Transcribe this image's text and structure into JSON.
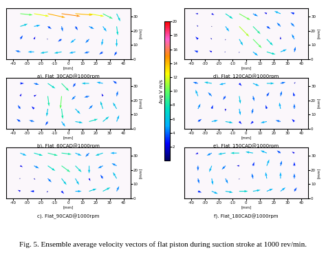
{
  "figure_caption": "Fig. 5. Ensemble average velocity vectors of flat piston during suction stroke at 1000 rev/min.",
  "colorbar": {
    "label": "Avg V m/s",
    "range": [
      0,
      20
    ],
    "ticks": [
      2,
      4,
      6,
      8,
      10,
      12,
      14,
      16,
      18,
      20
    ]
  },
  "chart_data": [
    {
      "type": "quiver",
      "title": "a). Flat_30CAD@1000rpm",
      "x_label": "[mm]",
      "y_label": "[mm]",
      "x": [
        -35,
        -25,
        -15,
        -5,
        5,
        15,
        25,
        35
      ],
      "y": [
        5,
        14,
        23,
        32
      ],
      "u": [
        [
          -4,
          -5,
          -6,
          -6,
          -5,
          -4,
          -3,
          -2
        ],
        [
          2,
          1,
          -1,
          -3,
          -4,
          -3,
          -1,
          0
        ],
        [
          6,
          5,
          3,
          1,
          2,
          4,
          3,
          1
        ],
        [
          10,
          12,
          14,
          15,
          14,
          12,
          8,
          3
        ]
      ],
      "v": [
        [
          1,
          0,
          -1,
          -1,
          -1,
          -1,
          -2,
          -3
        ],
        [
          3,
          2,
          0,
          -2,
          -3,
          -3,
          -5,
          -6
        ],
        [
          2,
          1,
          -2,
          -4,
          -3,
          -2,
          -4,
          -7
        ],
        [
          -1,
          -2,
          -3,
          -2,
          -1,
          -2,
          -4,
          -6
        ]
      ],
      "xlim": [
        -45,
        45
      ],
      "ylim": [
        0,
        36
      ],
      "xticks": [
        -40,
        -30,
        -20,
        -10,
        0,
        10,
        20,
        30,
        40
      ],
      "yticks": [
        0,
        10,
        20,
        30
      ]
    },
    {
      "type": "quiver",
      "title": "b). Flat_60CAD@1000rpm",
      "x_label": "[mm]",
      "y_label": "[mm]",
      "x": [
        -35,
        -25,
        -15,
        -5,
        5,
        15,
        25,
        35
      ],
      "y": [
        5,
        14,
        23,
        32
      ],
      "u": [
        [
          -3,
          -4,
          -2,
          3,
          6,
          7,
          5,
          2
        ],
        [
          -2,
          -2,
          -1,
          1,
          4,
          3,
          -2,
          -3
        ],
        [
          1,
          2,
          1,
          -1,
          -3,
          -4,
          -1,
          1
        ],
        [
          3,
          4,
          6,
          6,
          -2,
          -6,
          -5,
          -3
        ]
      ],
      "v": [
        [
          2,
          1,
          -3,
          -4,
          -1,
          2,
          4,
          5
        ],
        [
          3,
          2,
          -6,
          -8,
          -4,
          3,
          6,
          5
        ],
        [
          2,
          1,
          -8,
          -10,
          -3,
          -1,
          2,
          4
        ],
        [
          0,
          -1,
          -4,
          -6,
          -3,
          0,
          1,
          2
        ]
      ],
      "xlim": [
        -45,
        45
      ],
      "ylim": [
        0,
        36
      ],
      "xticks": [
        -40,
        -30,
        -20,
        -10,
        0,
        10,
        20,
        30,
        40
      ],
      "yticks": [
        0,
        10,
        20,
        30
      ]
    },
    {
      "type": "quiver",
      "title": "c). Flat_90CAD@1000rpm",
      "x_label": "[mm]",
      "y_label": "[mm]",
      "x": [
        -35,
        -25,
        -15,
        -5,
        5,
        15,
        25,
        35
      ],
      "y": [
        5,
        14,
        23,
        32
      ],
      "u": [
        [
          -2,
          -3,
          -1,
          2,
          5,
          6,
          6,
          2
        ],
        [
          -1,
          1,
          3,
          4,
          3,
          1,
          -2,
          -3
        ],
        [
          2,
          4,
          6,
          7,
          5,
          0,
          -4,
          -4
        ],
        [
          5,
          7,
          8,
          8,
          5,
          -3,
          -6,
          -5
        ]
      ],
      "v": [
        [
          1,
          0,
          -1,
          -2,
          0,
          2,
          3,
          4
        ],
        [
          0,
          -1,
          -3,
          -5,
          -5,
          -2,
          3,
          5
        ],
        [
          -1,
          -2,
          -4,
          -5,
          -5,
          -6,
          -2,
          2
        ],
        [
          -2,
          -2,
          -2,
          -1,
          -2,
          -3,
          -2,
          0
        ]
      ],
      "xlim": [
        -45,
        45
      ],
      "ylim": [
        0,
        36
      ],
      "xticks": [
        -40,
        -30,
        -20,
        -10,
        0,
        10,
        20,
        30,
        40
      ],
      "yticks": [
        0,
        10,
        20,
        30
      ]
    },
    {
      "type": "quiver",
      "title": "d). Flat_120CAD@1000rpm",
      "x_label": "[mm]",
      "y_label": "[mm]",
      "x": [
        -35,
        -25,
        -15,
        -5,
        5,
        15,
        25,
        35
      ],
      "y": [
        5,
        14,
        23,
        32
      ],
      "u": [
        [
          -3,
          -2,
          -1,
          0,
          4,
          7,
          5,
          1
        ],
        [
          -2,
          -1,
          0,
          3,
          7,
          5,
          0,
          -2
        ],
        [
          -1,
          0,
          3,
          8,
          6,
          3,
          -3,
          -3
        ],
        [
          -2,
          2,
          6,
          9,
          4,
          -2,
          -5,
          -3
        ]
      ],
      "v": [
        [
          1,
          1,
          0,
          -1,
          -3,
          -2,
          2,
          4
        ],
        [
          2,
          1,
          -1,
          -5,
          -7,
          -5,
          2,
          4
        ],
        [
          1,
          0,
          -4,
          -8,
          -6,
          -2,
          3,
          3
        ],
        [
          0,
          -1,
          -4,
          -5,
          -2,
          1,
          2,
          1
        ]
      ],
      "xlim": [
        -45,
        45
      ],
      "ylim": [
        0,
        36
      ],
      "xticks": [
        -40,
        -30,
        -20,
        -10,
        0,
        10,
        20,
        30,
        40
      ],
      "yticks": [
        0,
        10,
        20,
        30
      ]
    },
    {
      "type": "quiver",
      "title": "e). Flat_150CAD@1000rpm",
      "x_label": "[mm]",
      "y_label": "[mm]",
      "x": [
        -35,
        -25,
        -15,
        -5,
        5,
        15,
        25,
        35
      ],
      "y": [
        5,
        14,
        23,
        32
      ],
      "u": [
        [
          3,
          5,
          6,
          2,
          -2,
          -5,
          -4,
          -2
        ],
        [
          2,
          1,
          0,
          1,
          -1,
          -1,
          -1,
          0
        ],
        [
          -2,
          -3,
          -2,
          1,
          1,
          2,
          1,
          -1
        ],
        [
          -4,
          -6,
          -5,
          2,
          5,
          6,
          4,
          1
        ]
      ],
      "v": [
        [
          2,
          1,
          -1,
          -2,
          -2,
          -1,
          1,
          2
        ],
        [
          4,
          3,
          -2,
          -5,
          -4,
          3,
          5,
          4
        ],
        [
          5,
          3,
          -3,
          -6,
          -4,
          3,
          4,
          3
        ],
        [
          1,
          1,
          -1,
          -2,
          -2,
          0,
          1,
          1
        ]
      ],
      "xlim": [
        -45,
        45
      ],
      "ylim": [
        0,
        36
      ],
      "xticks": [
        -40,
        -30,
        -20,
        -10,
        0,
        10,
        20,
        30,
        40
      ],
      "yticks": [
        0,
        10,
        20,
        30
      ]
    },
    {
      "type": "quiver",
      "title": "f). Flat_180CAD@1000rpm",
      "x_label": "[mm]",
      "y_label": "[mm]",
      "x": [
        -35,
        -25,
        -15,
        -5,
        5,
        15,
        25,
        35
      ],
      "y": [
        5,
        14,
        23,
        32
      ],
      "u": [
        [
          3,
          5,
          6,
          7,
          6,
          5,
          4,
          2
        ],
        [
          1,
          1,
          2,
          0,
          -1,
          -1,
          0,
          0
        ],
        [
          0,
          -2,
          -3,
          -2,
          1,
          2,
          1,
          0
        ],
        [
          -2,
          -4,
          -6,
          -7,
          -6,
          -5,
          -3,
          -2
        ]
      ],
      "v": [
        [
          -1,
          -2,
          -1,
          0,
          1,
          2,
          3,
          3
        ],
        [
          -4,
          -5,
          -4,
          -1,
          4,
          5,
          5,
          4
        ],
        [
          -4,
          -5,
          -3,
          0,
          3,
          5,
          4,
          3
        ],
        [
          -1,
          -2,
          -1,
          0,
          1,
          2,
          2,
          1
        ]
      ],
      "xlim": [
        -45,
        45
      ],
      "ylim": [
        0,
        36
      ],
      "xticks": [
        -40,
        -30,
        -20,
        -10,
        0,
        10,
        20,
        30,
        40
      ],
      "yticks": [
        0,
        10,
        20,
        30
      ]
    }
  ]
}
